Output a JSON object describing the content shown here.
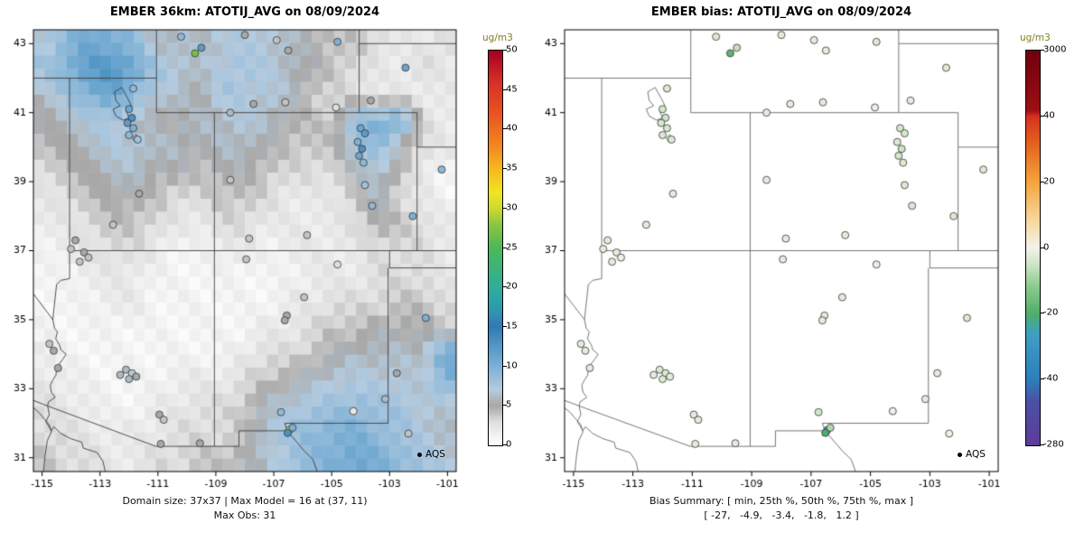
{
  "colors": {
    "unit_label_color": "#7e7e1e",
    "border_line_left": "#3c3c3c",
    "border_line_right": "#666666",
    "point_outline": "#333333"
  },
  "chart_data": [
    {
      "type": "heatmap",
      "subtype": "map-raster-scatter",
      "title": "EMBER 36km: ATOTIJ_AVG on 08/09/2024",
      "x_ticks": [
        -115,
        -113,
        -111,
        -109,
        -107,
        -105,
        -103,
        -101
      ],
      "y_ticks": [
        31,
        33,
        35,
        37,
        39,
        41,
        43
      ],
      "lon_range": [
        -115.3,
        -100.7
      ],
      "lat_range": [
        30.6,
        43.4
      ],
      "legend": "AQS",
      "caption_line1": "Domain size: 37x37 | Max Model = 16 at (37, 11)",
      "caption_line2": "Max Obs: 31",
      "colorbar": {
        "title": "ug/m3",
        "colormap": "model",
        "tick_values": [
          0,
          5,
          10,
          15,
          20,
          25,
          30,
          35,
          40,
          45,
          50
        ]
      },
      "raster": {
        "encoding": "hex digits, model value 0-15 ug/m3, rows top-to-bottom",
        "rows": [
          "79ba966677765443223",
          "8acdb87678765432232",
          "68ab976587764332222",
          "567865566765449ab32",
          "4567766566544489532",
          "3456655455433357421",
          "2345543344322246321",
          "2234432233222235432",
          "1223321122122223332",
          "1122211111112223332",
          "1112211111122333443",
          "1111111111223445554",
          "211111111233456666b",
          "221111222345677776a",
          "3221122334678898876",
          "3322223334789aa9876",
          "4332233445689aba987"
        ]
      }
    },
    {
      "type": "scatter",
      "subtype": "map-scatter",
      "title": "EMBER bias: ATOTIJ_AVG on 08/09/2024",
      "x_ticks": [
        -115,
        -113,
        -111,
        -109,
        -107,
        -105,
        -103,
        -101
      ],
      "y_ticks": [
        31,
        33,
        35,
        37,
        39,
        41,
        43
      ],
      "lon_range": [
        -115.3,
        -100.7
      ],
      "lat_range": [
        30.6,
        43.4
      ],
      "legend": "AQS",
      "caption_line1": "Bias Summary: [ min, 25th %, 50th %, 75th %, max ]",
      "caption_line2": "[ -27,   -4.9,   -3.4,   -1.8,   1.2 ]",
      "bias_summary": {
        "min": -27,
        "p25": -4.9,
        "p50": -3.4,
        "p75": -1.8,
        "max": 1.2
      },
      "colorbar": {
        "title": "ug/m3",
        "colormap": "bias",
        "tick_values": [
          3000,
          40,
          20,
          0,
          -20,
          -40,
          -280
        ]
      }
    }
  ],
  "stations": [
    [
      -110.2,
      43.2,
      9,
      -3
    ],
    [
      -108.0,
      43.25,
      5,
      -2
    ],
    [
      -106.9,
      43.1,
      4,
      -2
    ],
    [
      -104.8,
      43.05,
      10,
      -3
    ],
    [
      -106.5,
      42.8,
      5,
      -2
    ],
    [
      -109.72,
      42.72,
      27,
      -18
    ],
    [
      -109.5,
      42.88,
      12,
      -6
    ],
    [
      -102.45,
      42.3,
      11,
      -3
    ],
    [
      -107.7,
      41.25,
      5,
      -2
    ],
    [
      -106.6,
      41.3,
      4,
      -2
    ],
    [
      -104.85,
      41.15,
      3,
      -1
    ],
    [
      -103.65,
      41.35,
      5,
      -2
    ],
    [
      -111.85,
      41.7,
      9,
      -3
    ],
    [
      -112.0,
      41.1,
      11,
      -4
    ],
    [
      -111.9,
      40.85,
      13,
      -5
    ],
    [
      -112.05,
      40.7,
      12,
      -4
    ],
    [
      -111.85,
      40.55,
      10,
      -4
    ],
    [
      -112.0,
      40.35,
      9,
      -3
    ],
    [
      -111.7,
      40.22,
      8,
      -3
    ],
    [
      -108.5,
      41.0,
      6,
      -2
    ],
    [
      -111.65,
      38.65,
      5,
      -2
    ],
    [
      -112.55,
      37.75,
      4,
      -2
    ],
    [
      -113.85,
      37.3,
      5,
      -2
    ],
    [
      -114.0,
      37.05,
      4,
      -2
    ],
    [
      -113.55,
      36.95,
      5,
      -2
    ],
    [
      -113.4,
      36.8,
      4,
      -1
    ],
    [
      -113.7,
      36.68,
      4,
      -2
    ],
    [
      -104.0,
      40.55,
      11,
      -4
    ],
    [
      -103.85,
      40.4,
      12,
      -4
    ],
    [
      -104.1,
      40.15,
      10,
      -3
    ],
    [
      -103.95,
      39.95,
      13,
      -5
    ],
    [
      -104.05,
      39.75,
      11,
      -4
    ],
    [
      -103.9,
      39.55,
      9,
      -3
    ],
    [
      -103.85,
      38.9,
      8,
      -3
    ],
    [
      -103.6,
      38.3,
      9,
      -3
    ],
    [
      -102.2,
      38.0,
      10,
      -3
    ],
    [
      -101.2,
      39.35,
      9,
      -3
    ],
    [
      -108.5,
      39.05,
      4,
      -2
    ],
    [
      -107.85,
      37.35,
      4,
      -2
    ],
    [
      -105.85,
      37.45,
      4,
      -2
    ],
    [
      -114.75,
      34.3,
      4,
      -2
    ],
    [
      -114.6,
      34.1,
      5,
      -2
    ],
    [
      -114.45,
      33.6,
      5,
      -2
    ],
    [
      -112.1,
      33.55,
      6,
      -3
    ],
    [
      -111.9,
      33.45,
      7,
      -3
    ],
    [
      -112.3,
      33.4,
      6,
      -2
    ],
    [
      -112.0,
      33.28,
      6,
      -3
    ],
    [
      -111.75,
      33.35,
      5,
      -2
    ],
    [
      -110.95,
      32.25,
      5,
      -2
    ],
    [
      -110.8,
      32.1,
      4,
      -2
    ],
    [
      -110.9,
      31.4,
      5,
      -2
    ],
    [
      -109.55,
      31.42,
      5,
      -2
    ],
    [
      -105.95,
      35.65,
      4,
      -2
    ],
    [
      -106.55,
      35.12,
      5,
      -2
    ],
    [
      -106.62,
      34.98,
      5,
      -2
    ],
    [
      -104.8,
      36.6,
      3,
      -1
    ],
    [
      -106.75,
      32.32,
      9,
      -4
    ],
    [
      -106.46,
      31.8,
      31,
      -27
    ],
    [
      -106.52,
      31.72,
      13,
      -20
    ],
    [
      -106.35,
      31.87,
      10,
      -8
    ],
    [
      -104.25,
      32.35,
      2,
      -1
    ],
    [
      -103.15,
      32.7,
      6,
      -2
    ],
    [
      -102.35,
      31.7,
      4,
      1.2
    ],
    [
      -101.75,
      35.05,
      10,
      -3
    ],
    [
      -102.75,
      33.45,
      5,
      -2
    ],
    [
      -107.95,
      36.75,
      4,
      -2
    ]
  ],
  "colormaps": {
    "model_range": [
      0,
      50
    ],
    "model": [
      [
        0,
        "#ffffff"
      ],
      [
        3,
        "#dedede"
      ],
      [
        5,
        "#a8a8a8"
      ],
      [
        7,
        "#b4cbdf"
      ],
      [
        10,
        "#7db0d5"
      ],
      [
        13,
        "#4b92c3"
      ],
      [
        15,
        "#3079b5"
      ],
      [
        17,
        "#2f96ad"
      ],
      [
        20,
        "#2fae9b"
      ],
      [
        25,
        "#4cb858"
      ],
      [
        28,
        "#8cc63f"
      ],
      [
        30,
        "#cdd930"
      ],
      [
        32,
        "#f2e422"
      ],
      [
        35,
        "#f5b81e"
      ],
      [
        38,
        "#f2861f"
      ],
      [
        42,
        "#e85420"
      ],
      [
        46,
        "#d73027"
      ],
      [
        50,
        "#a50021"
      ]
    ],
    "bias_ticks": [
      -280,
      -40,
      -20,
      0,
      20,
      40,
      3000
    ],
    "bias": [
      [
        -280,
        "#5e3c99"
      ],
      [
        -120,
        "#4a51a5"
      ],
      [
        -40,
        "#2e7ebc"
      ],
      [
        -26,
        "#3f9fc4"
      ],
      [
        -20,
        "#4fae68"
      ],
      [
        -12,
        "#8bc98c"
      ],
      [
        -5,
        "#cde5c4"
      ],
      [
        0,
        "#f2f2ec"
      ],
      [
        8,
        "#f7d9a0"
      ],
      [
        20,
        "#f4a43e"
      ],
      [
        32,
        "#e4601f"
      ],
      [
        40,
        "#d7301f"
      ],
      [
        300,
        "#9c0f13"
      ],
      [
        3000,
        "#70000f"
      ]
    ]
  },
  "basemap": {
    "lines": [
      [
        [
          -115.3,
          42
        ],
        [
          -111.05,
          42
        ]
      ],
      [
        [
          -111.05,
          43.4
        ],
        [
          -111.05,
          41
        ]
      ],
      [
        [
          -111.05,
          41
        ],
        [
          -102.05,
          41
        ]
      ],
      [
        [
          -104.05,
          43.4
        ],
        [
          -104.05,
          41
        ]
      ],
      [
        [
          -104.05,
          43
        ],
        [
          -100.7,
          43
        ]
      ],
      [
        [
          -114.05,
          42
        ],
        [
          -114.05,
          37
        ]
      ],
      [
        [
          -109.05,
          41
        ],
        [
          -109.05,
          37
        ]
      ],
      [
        [
          -114.05,
          37
        ],
        [
          -100.7,
          37
        ]
      ],
      [
        [
          -109.05,
          37
        ],
        [
          -109.05,
          31.33
        ]
      ],
      [
        [
          -102.05,
          41
        ],
        [
          -102.05,
          37
        ]
      ],
      [
        [
          -102.05,
          40
        ],
        [
          -100.7,
          40
        ]
      ],
      [
        [
          -103.0,
          36.5
        ],
        [
          -100.7,
          36.5
        ]
      ],
      [
        [
          -103.0,
          37
        ],
        [
          -103.0,
          36.5
        ]
      ],
      [
        [
          -103.05,
          36.5
        ],
        [
          -103.05,
          32.0
        ]
      ],
      [
        [
          -103.05,
          32.0
        ],
        [
          -106.62,
          32.0
        ]
      ],
      [
        [
          -106.62,
          32.0
        ],
        [
          -106.53,
          31.78
        ]
      ],
      [
        [
          -114.05,
          37
        ],
        [
          -114.05,
          36.19
        ],
        [
          -114.35,
          36.14
        ],
        [
          -114.5,
          36.02
        ],
        [
          -114.63,
          35.0
        ],
        [
          -114.57,
          34.75
        ],
        [
          -114.47,
          34.65
        ],
        [
          -114.53,
          34.45
        ],
        [
          -114.4,
          34.27
        ],
        [
          -114.35,
          34.13
        ],
        [
          -114.17,
          34.0
        ],
        [
          -114.28,
          33.86
        ],
        [
          -114.5,
          33.62
        ],
        [
          -114.52,
          33.4
        ],
        [
          -114.63,
          33.25
        ],
        [
          -114.72,
          33.1
        ],
        [
          -114.68,
          32.9
        ],
        [
          -114.55,
          32.75
        ],
        [
          -114.78,
          32.62
        ],
        [
          -114.81,
          32.5
        ]
      ],
      [
        [
          -115.3,
          35.75
        ],
        [
          -114.63,
          35.0
        ]
      ],
      [
        [
          -115.3,
          32.66
        ],
        [
          -114.81,
          32.5
        ]
      ],
      [
        [
          -114.81,
          32.5
        ],
        [
          -111.07,
          31.33
        ],
        [
          -109.05,
          31.33
        ],
        [
          -108.2,
          31.33
        ]
      ],
      [
        [
          -108.2,
          31.33
        ],
        [
          -108.2,
          31.78
        ],
        [
          -106.53,
          31.78
        ]
      ],
      [
        [
          -106.53,
          31.78
        ],
        [
          -106.35,
          31.6
        ],
        [
          -106.2,
          31.45
        ],
        [
          -105.95,
          31.2
        ],
        [
          -105.65,
          30.95
        ],
        [
          -105.5,
          30.6
        ]
      ],
      [
        [
          -114.95,
          30.6
        ],
        [
          -114.9,
          31.05
        ],
        [
          -114.82,
          31.5
        ],
        [
          -114.68,
          31.75
        ],
        [
          -114.75,
          31.95
        ],
        [
          -114.9,
          32.1
        ],
        [
          -115.1,
          32.3
        ],
        [
          -115.3,
          32.45
        ]
      ],
      [
        [
          -114.6,
          31.9
        ],
        [
          -114.35,
          31.7
        ],
        [
          -114.0,
          31.55
        ],
        [
          -113.63,
          31.45
        ],
        [
          -113.58,
          31.28
        ],
        [
          -113.1,
          31.15
        ],
        [
          -112.9,
          30.9
        ],
        [
          -112.82,
          30.6
        ]
      ],
      [
        [
          -114.81,
          32.5
        ],
        [
          -114.75,
          32.25
        ],
        [
          -114.87,
          32.05
        ],
        [
          -114.68,
          31.78
        ],
        [
          -114.6,
          31.9
        ]
      ],
      [
        [
          -112.25,
          41.73
        ],
        [
          -112.5,
          41.6
        ],
        [
          -112.45,
          41.35
        ],
        [
          -112.3,
          41.2
        ],
        [
          -112.55,
          41.1
        ],
        [
          -112.45,
          40.9
        ],
        [
          -112.2,
          40.78
        ],
        [
          -112.0,
          40.85
        ],
        [
          -112.1,
          41.05
        ],
        [
          -111.92,
          41.2
        ],
        [
          -112.05,
          41.42
        ],
        [
          -112.25,
          41.73
        ]
      ],
      [
        [
          -111.75,
          40.37
        ],
        [
          -111.88,
          40.27
        ],
        [
          -111.78,
          40.13
        ],
        [
          -111.68,
          40.23
        ],
        [
          -111.75,
          40.37
        ]
      ]
    ]
  }
}
